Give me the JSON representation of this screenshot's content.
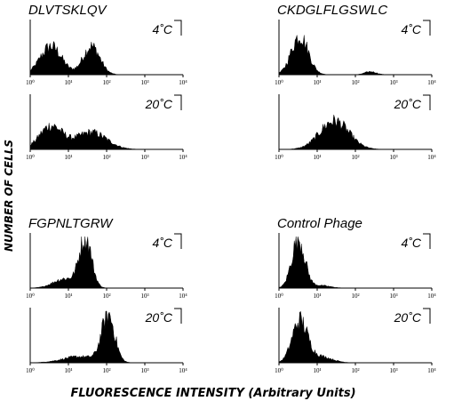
{
  "figure": {
    "ylabel": "NUMBER OF CELLS",
    "xlabel": "FLUORESCENCE INTENSITY (Arbitrary Units)"
  },
  "chart_data": [
    {
      "type": "area",
      "title": "DLVTSKLQV",
      "subplots": [
        {
          "label": "4˚C",
          "x_scale": "log",
          "xlim": [
            1,
            10000
          ],
          "xticks": [
            "10⁰",
            "10¹",
            "10²",
            "10³",
            "10⁴"
          ],
          "peaks": [
            {
              "center": 3.5,
              "height": 0.55,
              "width": 0.28
            },
            {
              "center": 40,
              "height": 0.55,
              "width": 0.22
            }
          ]
        },
        {
          "label": "20˚C",
          "x_scale": "log",
          "xlim": [
            1,
            10000
          ],
          "xticks": [
            "10⁰",
            "10¹",
            "10²",
            "10³",
            "10⁴"
          ],
          "peaks": [
            {
              "center": 3.5,
              "height": 0.45,
              "width": 0.3
            },
            {
              "center": 40,
              "height": 0.33,
              "width": 0.4
            }
          ]
        }
      ]
    },
    {
      "type": "area",
      "title": "CKDGLFLGSWLC",
      "subplots": [
        {
          "label": "4˚C",
          "x_scale": "log",
          "xlim": [
            1,
            10000
          ],
          "xticks": [
            "10⁰",
            "10¹",
            "10²",
            "10³",
            "10⁴"
          ],
          "peaks": [
            {
              "center": 3.5,
              "height": 0.75,
              "width": 0.22
            },
            {
              "center": 250,
              "height": 0.06,
              "width": 0.15
            }
          ]
        },
        {
          "label": "20˚C",
          "x_scale": "log",
          "xlim": [
            1,
            10000
          ],
          "xticks": [
            "10⁰",
            "10¹",
            "10²",
            "10³",
            "10⁴"
          ],
          "peaks": [
            {
              "center": 28,
              "height": 0.55,
              "width": 0.38
            }
          ]
        }
      ]
    },
    {
      "type": "area",
      "title": "FGPNLTGRW",
      "subplots": [
        {
          "label": "4˚C",
          "x_scale": "log",
          "xlim": [
            1,
            10000
          ],
          "xticks": [
            "10⁰",
            "10¹",
            "10²",
            "10³",
            "10⁴"
          ],
          "peaks": [
            {
              "center": 28,
              "height": 0.95,
              "width": 0.16
            },
            {
              "center": 8,
              "height": 0.18,
              "width": 0.3
            }
          ]
        },
        {
          "label": "20˚C",
          "x_scale": "log",
          "xlim": [
            1,
            10000
          ],
          "xticks": [
            "10⁰",
            "10¹",
            "10²",
            "10³",
            "10⁴"
          ],
          "peaks": [
            {
              "center": 110,
              "height": 0.9,
              "width": 0.17
            },
            {
              "center": 20,
              "height": 0.12,
              "width": 0.45
            }
          ]
        }
      ]
    },
    {
      "type": "area",
      "title": "Control Phage",
      "subplots": [
        {
          "label": "4˚C",
          "x_scale": "log",
          "xlim": [
            1,
            10000
          ],
          "xticks": [
            "10⁰",
            "10¹",
            "10²",
            "10³",
            "10⁴"
          ],
          "peaks": [
            {
              "center": 3.2,
              "height": 0.95,
              "width": 0.17
            },
            {
              "center": 12,
              "height": 0.05,
              "width": 0.25
            }
          ]
        },
        {
          "label": "20˚C",
          "x_scale": "log",
          "xlim": [
            1,
            10000
          ],
          "xticks": [
            "10⁰",
            "10¹",
            "10²",
            "10³",
            "10⁴"
          ],
          "peaks": [
            {
              "center": 3.5,
              "height": 0.8,
              "width": 0.2
            },
            {
              "center": 12,
              "height": 0.12,
              "width": 0.3
            }
          ]
        }
      ]
    }
  ]
}
